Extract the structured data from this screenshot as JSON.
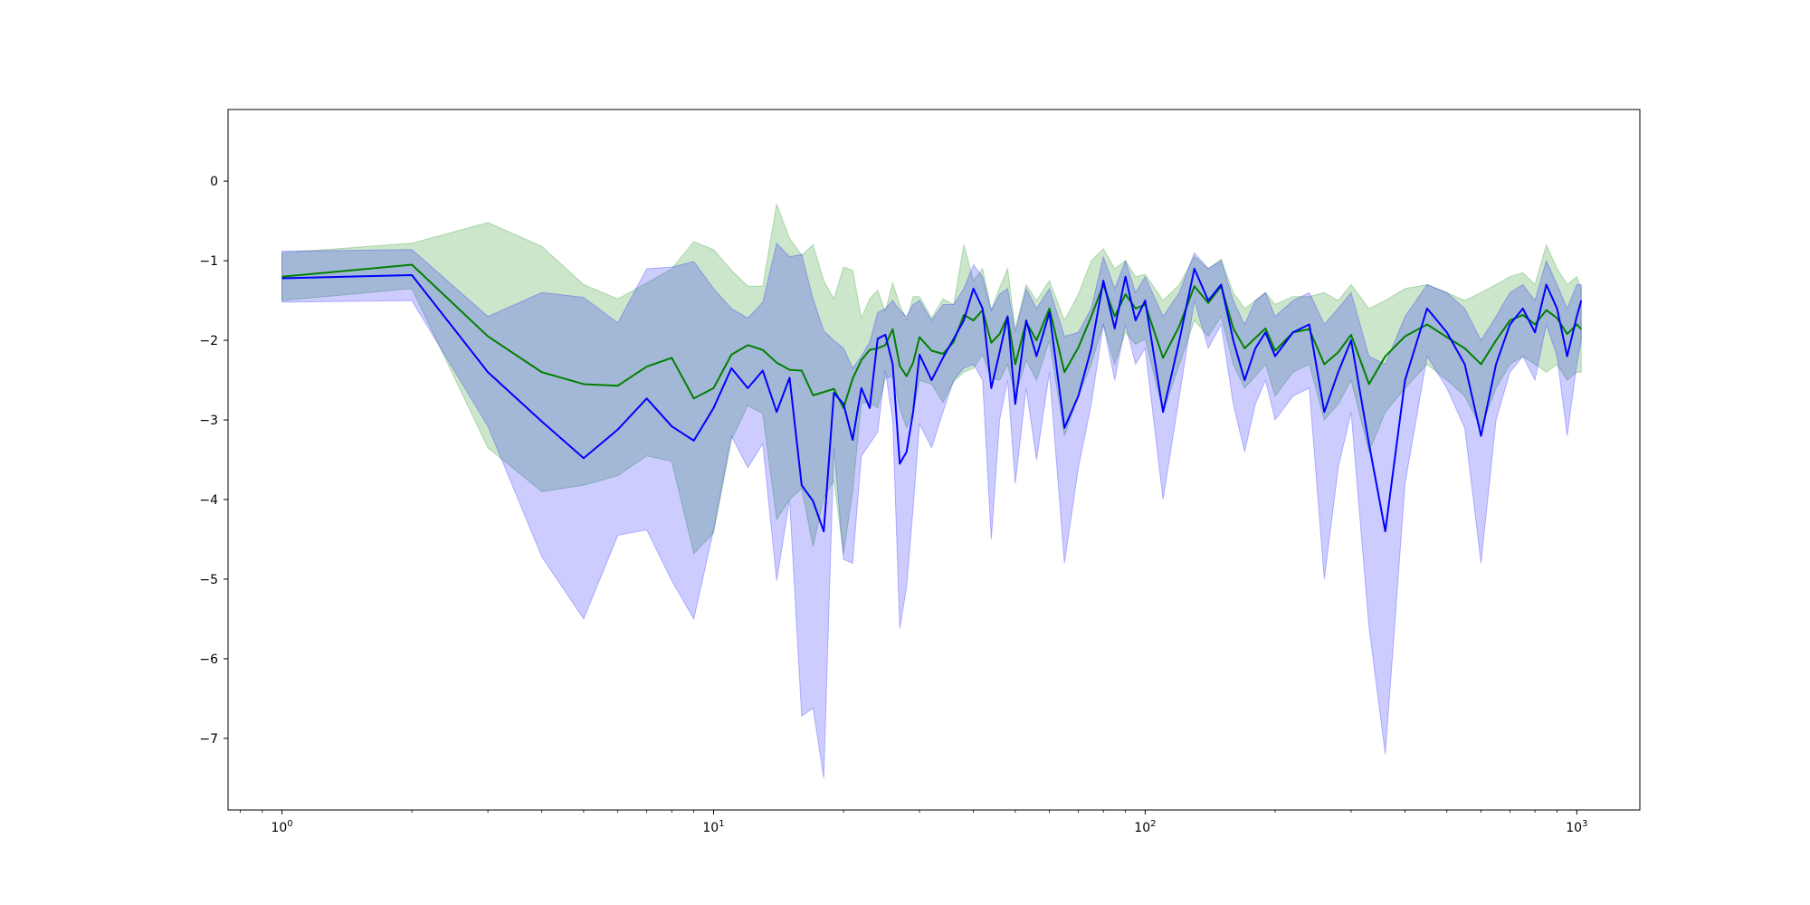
{
  "chart_data": {
    "type": "line",
    "title": "",
    "xlabel": "",
    "ylabel": "",
    "xscale": "log",
    "xlim": [
      0.75,
      1400
    ],
    "ylim": [
      -7.9,
      0.9
    ],
    "grid": false,
    "legend": "none",
    "x_ticks": [
      {
        "base": "10",
        "exp": "0",
        "value": 1
      },
      {
        "base": "10",
        "exp": "1",
        "value": 10
      },
      {
        "base": "10",
        "exp": "2",
        "value": 100
      },
      {
        "base": "10",
        "exp": "3",
        "value": 1000
      }
    ],
    "y_ticks": [
      {
        "label": "0",
        "value": 0
      },
      {
        "label": "−1",
        "value": -1
      },
      {
        "label": "−2",
        "value": -2
      },
      {
        "label": "−3",
        "value": -3
      },
      {
        "label": "−4",
        "value": -4
      },
      {
        "label": "−5",
        "value": -5
      },
      {
        "label": "−6",
        "value": -6
      },
      {
        "label": "−7",
        "value": -7
      }
    ],
    "series": [
      {
        "color": "#008000",
        "band_color": "#008000",
        "band_opacity": 0.2,
        "x": [
          1,
          2,
          3,
          4,
          5,
          6,
          7,
          8,
          9,
          10,
          11,
          12,
          13,
          14,
          15,
          16,
          17,
          18,
          19,
          20,
          21,
          22,
          23,
          24,
          25,
          26,
          27,
          28,
          29,
          30,
          32,
          34,
          36,
          38,
          40,
          42,
          44,
          46,
          48,
          50,
          53,
          56,
          60,
          65,
          70,
          75,
          80,
          85,
          90,
          95,
          100,
          110,
          120,
          130,
          140,
          150,
          160,
          170,
          180,
          190,
          200,
          220,
          240,
          260,
          280,
          300,
          330,
          360,
          400,
          450,
          500,
          550,
          600,
          650,
          700,
          750,
          800,
          850,
          900,
          950,
          1000,
          1024
        ],
        "y": [
          -1.2,
          -1.05,
          -1.95,
          -2.4,
          -2.55,
          -2.57,
          -2.33,
          -2.22,
          -2.73,
          -2.6,
          -2.18,
          -2.06,
          -2.12,
          -2.28,
          -2.37,
          -2.38,
          -2.69,
          -2.65,
          -2.61,
          -2.85,
          -2.48,
          -2.25,
          -2.12,
          -2.1,
          -2.06,
          -1.86,
          -2.32,
          -2.45,
          -2.28,
          -1.96,
          -2.13,
          -2.17,
          -2.02,
          -1.68,
          -1.75,
          -1.62,
          -2.03,
          -1.92,
          -1.7,
          -2.3,
          -1.77,
          -2.0,
          -1.6,
          -2.4,
          -2.09,
          -1.7,
          -1.3,
          -1.7,
          -1.42,
          -1.6,
          -1.55,
          -2.22,
          -1.82,
          -1.32,
          -1.53,
          -1.32,
          -1.85,
          -2.1,
          -1.97,
          -1.85,
          -2.13,
          -1.9,
          -1.86,
          -2.3,
          -2.15,
          -1.93,
          -2.55,
          -2.2,
          -1.95,
          -1.8,
          -1.96,
          -2.1,
          -2.3,
          -2.0,
          -1.75,
          -1.68,
          -1.8,
          -1.62,
          -1.72,
          -1.92,
          -1.8,
          -1.86
        ],
        "y_upper": [
          -0.9,
          -0.78,
          -0.52,
          -0.82,
          -1.3,
          -1.48,
          -1.28,
          -1.1,
          -0.76,
          -0.86,
          -1.12,
          -1.32,
          -1.32,
          -0.29,
          -0.72,
          -0.93,
          -0.8,
          -1.25,
          -1.48,
          -1.08,
          -1.12,
          -1.72,
          -1.48,
          -1.37,
          -1.64,
          -1.28,
          -1.55,
          -1.75,
          -1.45,
          -1.45,
          -1.72,
          -1.48,
          -1.55,
          -0.8,
          -1.25,
          -1.1,
          -1.62,
          -1.34,
          -1.1,
          -1.86,
          -1.3,
          -1.5,
          -1.25,
          -1.75,
          -1.42,
          -1.0,
          -0.85,
          -1.1,
          -1.0,
          -1.2,
          -1.17,
          -1.5,
          -1.3,
          -0.95,
          -1.1,
          -0.98,
          -1.4,
          -1.6,
          -1.5,
          -1.4,
          -1.55,
          -1.45,
          -1.45,
          -1.4,
          -1.5,
          -1.3,
          -1.6,
          -1.5,
          -1.35,
          -1.3,
          -1.4,
          -1.5,
          -1.4,
          -1.3,
          -1.2,
          -1.15,
          -1.3,
          -0.8,
          -1.1,
          -1.3,
          -1.2,
          -1.35
        ],
        "y_lower": [
          -1.5,
          -1.35,
          -3.35,
          -3.9,
          -3.82,
          -3.7,
          -3.45,
          -3.52,
          -4.68,
          -4.42,
          -3.25,
          -2.82,
          -2.92,
          -4.25,
          -4.0,
          -3.86,
          -4.59,
          -3.98,
          -3.76,
          -4.68,
          -3.89,
          -2.79,
          -2.78,
          -2.85,
          -2.48,
          -2.45,
          -2.85,
          -3.1,
          -2.9,
          -2.5,
          -2.55,
          -2.78,
          -2.52,
          -2.4,
          -2.35,
          -2.18,
          -2.48,
          -2.5,
          -2.3,
          -2.7,
          -2.25,
          -2.5,
          -2.0,
          -3.2,
          -2.7,
          -2.3,
          -1.8,
          -2.3,
          -1.9,
          -2.05,
          -1.98,
          -2.9,
          -2.3,
          -1.75,
          -1.95,
          -1.7,
          -2.3,
          -2.6,
          -2.45,
          -2.3,
          -2.7,
          -2.4,
          -2.3,
          -3.0,
          -2.8,
          -2.5,
          -3.4,
          -2.9,
          -2.6,
          -2.3,
          -2.5,
          -2.7,
          -3.1,
          -2.6,
          -2.3,
          -2.2,
          -2.3,
          -2.4,
          -2.3,
          -2.5,
          -2.4,
          -2.4
        ]
      },
      {
        "color": "#0000ff",
        "band_color": "#0000ff",
        "band_opacity": 0.2,
        "x": [
          1,
          2,
          3,
          4,
          5,
          6,
          7,
          8,
          9,
          10,
          11,
          12,
          13,
          14,
          15,
          16,
          17,
          18,
          19,
          20,
          21,
          22,
          23,
          24,
          25,
          26,
          27,
          28,
          29,
          30,
          32,
          34,
          36,
          38,
          40,
          42,
          44,
          46,
          48,
          50,
          53,
          56,
          60,
          65,
          70,
          75,
          80,
          85,
          90,
          95,
          100,
          110,
          120,
          130,
          140,
          150,
          160,
          170,
          180,
          190,
          200,
          220,
          240,
          260,
          280,
          300,
          330,
          360,
          400,
          450,
          500,
          550,
          600,
          650,
          700,
          750,
          800,
          850,
          900,
          950,
          1000,
          1024
        ],
        "y": [
          -1.22,
          -1.18,
          -2.4,
          -3.02,
          -3.48,
          -3.12,
          -2.73,
          -3.08,
          -3.26,
          -2.85,
          -2.35,
          -2.6,
          -2.38,
          -2.9,
          -2.47,
          -3.82,
          -4.02,
          -4.4,
          -2.66,
          -2.8,
          -3.25,
          -2.6,
          -2.85,
          -1.98,
          -1.93,
          -2.3,
          -3.55,
          -3.4,
          -2.9,
          -2.18,
          -2.5,
          -2.22,
          -1.98,
          -1.75,
          -1.35,
          -1.6,
          -2.6,
          -2.15,
          -1.7,
          -2.8,
          -1.75,
          -2.2,
          -1.65,
          -3.1,
          -2.7,
          -2.1,
          -1.25,
          -1.85,
          -1.2,
          -1.75,
          -1.5,
          -2.9,
          -2.0,
          -1.1,
          -1.5,
          -1.3,
          -2.0,
          -2.5,
          -2.1,
          -1.9,
          -2.2,
          -1.9,
          -1.8,
          -2.9,
          -2.4,
          -2.0,
          -3.3,
          -4.4,
          -2.5,
          -1.6,
          -1.9,
          -2.3,
          -3.2,
          -2.3,
          -1.8,
          -1.6,
          -1.9,
          -1.3,
          -1.6,
          -2.2,
          -1.7,
          -1.5
        ],
        "y_upper": [
          -0.88,
          -0.86,
          -1.7,
          -1.4,
          -1.46,
          -1.78,
          -1.1,
          -1.08,
          -1.01,
          -1.35,
          -1.6,
          -1.72,
          -1.52,
          -0.78,
          -0.95,
          -0.92,
          -1.48,
          -1.88,
          -2.0,
          -2.1,
          -2.35,
          -2.2,
          -2.02,
          -1.65,
          -1.6,
          -1.5,
          -1.62,
          -1.7,
          -1.55,
          -1.5,
          -1.75,
          -1.55,
          -1.55,
          -1.35,
          -1.05,
          -1.2,
          -1.62,
          -1.42,
          -1.35,
          -1.9,
          -1.35,
          -1.6,
          -1.35,
          -1.95,
          -1.9,
          -1.6,
          -0.95,
          -1.35,
          -1.0,
          -1.4,
          -1.2,
          -1.7,
          -1.4,
          -0.9,
          -1.1,
          -1.0,
          -1.5,
          -1.8,
          -1.5,
          -1.4,
          -1.7,
          -1.5,
          -1.4,
          -1.8,
          -1.6,
          -1.4,
          -2.2,
          -2.3,
          -1.7,
          -1.3,
          -1.4,
          -1.6,
          -2.0,
          -1.7,
          -1.4,
          -1.3,
          -1.5,
          -1.0,
          -1.3,
          -1.6,
          -1.3,
          -1.3
        ],
        "y_lower": [
          -1.52,
          -1.5,
          -3.08,
          -4.72,
          -5.5,
          -4.45,
          -4.38,
          -5.02,
          -5.5,
          -4.38,
          -3.2,
          -3.6,
          -3.3,
          -5.02,
          -4.0,
          -6.72,
          -6.62,
          -7.5,
          -3.35,
          -4.75,
          -4.8,
          -3.45,
          -3.3,
          -3.15,
          -2.38,
          -3.0,
          -5.62,
          -5.1,
          -4.1,
          -3.05,
          -3.35,
          -2.9,
          -2.5,
          -2.35,
          -2.3,
          -2.5,
          -4.5,
          -3.0,
          -2.5,
          -3.8,
          -2.6,
          -3.5,
          -2.4,
          -4.8,
          -3.6,
          -2.8,
          -1.8,
          -2.5,
          -1.8,
          -2.3,
          -2.1,
          -4.0,
          -2.7,
          -1.5,
          -2.1,
          -1.8,
          -2.8,
          -3.4,
          -2.8,
          -2.5,
          -3.0,
          -2.7,
          -2.6,
          -5.0,
          -3.6,
          -2.9,
          -5.6,
          -7.2,
          -3.8,
          -2.2,
          -2.6,
          -3.1,
          -4.8,
          -3.0,
          -2.4,
          -2.2,
          -2.5,
          -1.8,
          -2.2,
          -3.2,
          -2.3,
          -2.0
        ]
      }
    ]
  }
}
